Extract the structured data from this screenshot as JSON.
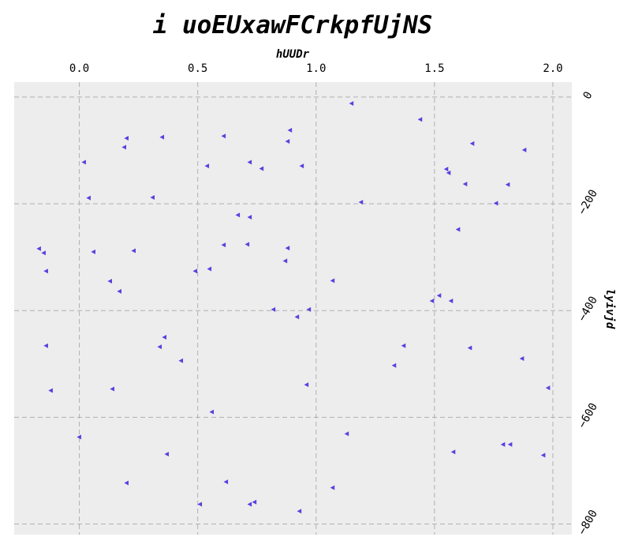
{
  "chart_data": {
    "type": "scatter",
    "title": "i uoEUxawFCrkpfUjNS",
    "xlabel": "hUUDr",
    "ylabel": "lyivjd",
    "xlim": [
      -0.275,
      2.08
    ],
    "ylim": [
      -820,
      28
    ],
    "x_ticks": [
      {
        "value": 0.0,
        "label": "0.0"
      },
      {
        "value": 0.5,
        "label": "0.5"
      },
      {
        "value": 1.0,
        "label": "1.0"
      },
      {
        "value": 1.5,
        "label": "1.5"
      },
      {
        "value": 2.0,
        "label": "2.0"
      }
    ],
    "y_ticks": [
      {
        "value": 0,
        "label": "0"
      },
      {
        "value": -200,
        "label": "−200"
      },
      {
        "value": -400,
        "label": "−400"
      },
      {
        "value": -600,
        "label": "−600"
      },
      {
        "value": -800,
        "label": "−800"
      }
    ],
    "x_axis_position": "top",
    "y_axis_position": "right",
    "grid": true,
    "marker": "triangle-left",
    "colors": {
      "marker": "#5b3fe0",
      "plot_background": "#ededed",
      "grid": "#b0b0b0",
      "text": "#000000"
    },
    "series": [
      {
        "points": [
          [
            1.15,
            -12
          ],
          [
            1.44,
            -42
          ],
          [
            0.89,
            -62
          ],
          [
            0.2,
            -77
          ],
          [
            0.35,
            -75
          ],
          [
            0.61,
            -73
          ],
          [
            0.88,
            -83
          ],
          [
            1.66,
            -87
          ],
          [
            0.19,
            -94
          ],
          [
            1.88,
            -99
          ],
          [
            0.02,
            -122
          ],
          [
            0.72,
            -122
          ],
          [
            0.54,
            -129
          ],
          [
            0.77,
            -134
          ],
          [
            0.94,
            -129
          ],
          [
            1.55,
            -135
          ],
          [
            1.56,
            -142
          ],
          [
            1.63,
            -163
          ],
          [
            1.81,
            -164
          ],
          [
            0.04,
            -189
          ],
          [
            0.31,
            -188
          ],
          [
            1.19,
            -197
          ],
          [
            1.76,
            -199
          ],
          [
            0.67,
            -221
          ],
          [
            0.72,
            -225
          ],
          [
            1.6,
            -248
          ],
          [
            -0.17,
            -284
          ],
          [
            -0.15,
            -292
          ],
          [
            0.06,
            -290
          ],
          [
            0.23,
            -288
          ],
          [
            0.61,
            -277
          ],
          [
            0.71,
            -276
          ],
          [
            0.88,
            -283
          ],
          [
            -0.14,
            -326
          ],
          [
            0.49,
            -326
          ],
          [
            0.55,
            -322
          ],
          [
            0.87,
            -307
          ],
          [
            0.13,
            -345
          ],
          [
            1.07,
            -344
          ],
          [
            0.17,
            -364
          ],
          [
            1.52,
            -372
          ],
          [
            1.49,
            -382
          ],
          [
            1.57,
            -382
          ],
          [
            0.82,
            -398
          ],
          [
            0.97,
            -398
          ],
          [
            0.92,
            -412
          ],
          [
            0.36,
            -450
          ],
          [
            0.34,
            -468
          ],
          [
            -0.14,
            -466
          ],
          [
            1.37,
            -466
          ],
          [
            1.65,
            -470
          ],
          [
            1.87,
            -490
          ],
          [
            0.43,
            -494
          ],
          [
            1.33,
            -503
          ],
          [
            0.96,
            -539
          ],
          [
            1.98,
            -545
          ],
          [
            -0.12,
            -550
          ],
          [
            0.14,
            -547
          ],
          [
            0.56,
            -590
          ],
          [
            1.13,
            -631
          ],
          [
            0.0,
            -637
          ],
          [
            1.79,
            -651
          ],
          [
            1.82,
            -651
          ],
          [
            1.58,
            -665
          ],
          [
            0.37,
            -669
          ],
          [
            1.96,
            -671
          ],
          [
            0.2,
            -723
          ],
          [
            0.62,
            -721
          ],
          [
            1.07,
            -732
          ],
          [
            0.51,
            -763
          ],
          [
            0.72,
            -763
          ],
          [
            0.74,
            -759
          ],
          [
            0.93,
            -776
          ]
        ]
      }
    ]
  }
}
